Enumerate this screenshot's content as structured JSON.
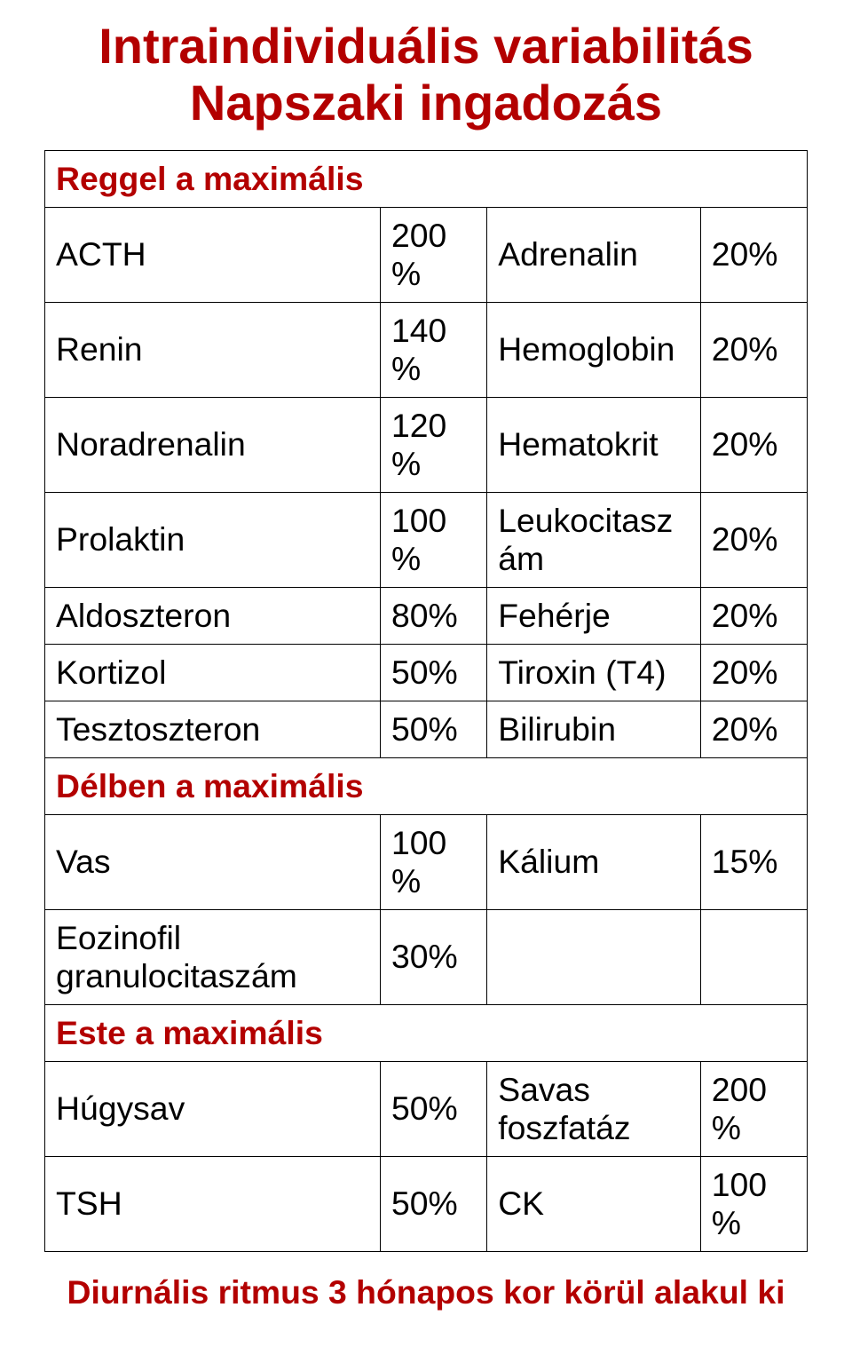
{
  "title": {
    "line1": "Intraindividuális variabilitás",
    "line2": "Napszaki ingadozás",
    "color": "#b30000",
    "fontsize_pt": 42
  },
  "table": {
    "body_fontsize_pt": 28,
    "body_color": "#000000",
    "section_color": "#b30000",
    "border_color": "#000000",
    "col_widths_pct": [
      44,
      14,
      28,
      14
    ],
    "rows": [
      {
        "type": "section",
        "label": "Reggel a maximális"
      },
      {
        "type": "data",
        "c1": "ACTH",
        "c2": "200%",
        "c3": "Adrenalin",
        "c4": "20%"
      },
      {
        "type": "data",
        "c1": "Renin",
        "c2": "140%",
        "c3": "Hemoglobin",
        "c4": "20%"
      },
      {
        "type": "data",
        "c1": "Noradrenalin",
        "c2": "120%",
        "c3": "Hematokrit",
        "c4": "20%"
      },
      {
        "type": "data",
        "c1": "Prolaktin",
        "c2": "100%",
        "c3": "Leukocitaszám",
        "c4": "20%"
      },
      {
        "type": "data",
        "c1": "Aldoszteron",
        "c2": "80%",
        "c3": "Fehérje",
        "c4": "20%"
      },
      {
        "type": "data",
        "c1": "Kortizol",
        "c2": "50%",
        "c3": "Tiroxin (T4)",
        "c4": "20%"
      },
      {
        "type": "data",
        "c1": "Tesztoszteron",
        "c2": "50%",
        "c3": "Bilirubin",
        "c4": "20%"
      },
      {
        "type": "section",
        "label": "Délben a maximális"
      },
      {
        "type": "data",
        "c1": "Vas",
        "c2": "100%",
        "c3": "Kálium",
        "c4": "15%"
      },
      {
        "type": "data",
        "c1": "Eozinofil granulocitaszám",
        "c2": "30%",
        "c3": "",
        "c4": ""
      },
      {
        "type": "section",
        "label": "Este a maximális"
      },
      {
        "type": "data",
        "c1": "Húgysav",
        "c2": "50%",
        "c3": "Savas foszfatáz",
        "c4": "200%"
      },
      {
        "type": "data",
        "c1": "TSH",
        "c2": "50%",
        "c3": "CK",
        "c4": "100%"
      }
    ]
  },
  "footer": {
    "text": "Diurnális ritmus 3 hónapos kor körül alakul ki",
    "color": "#b30000",
    "fontsize_pt": 28
  }
}
